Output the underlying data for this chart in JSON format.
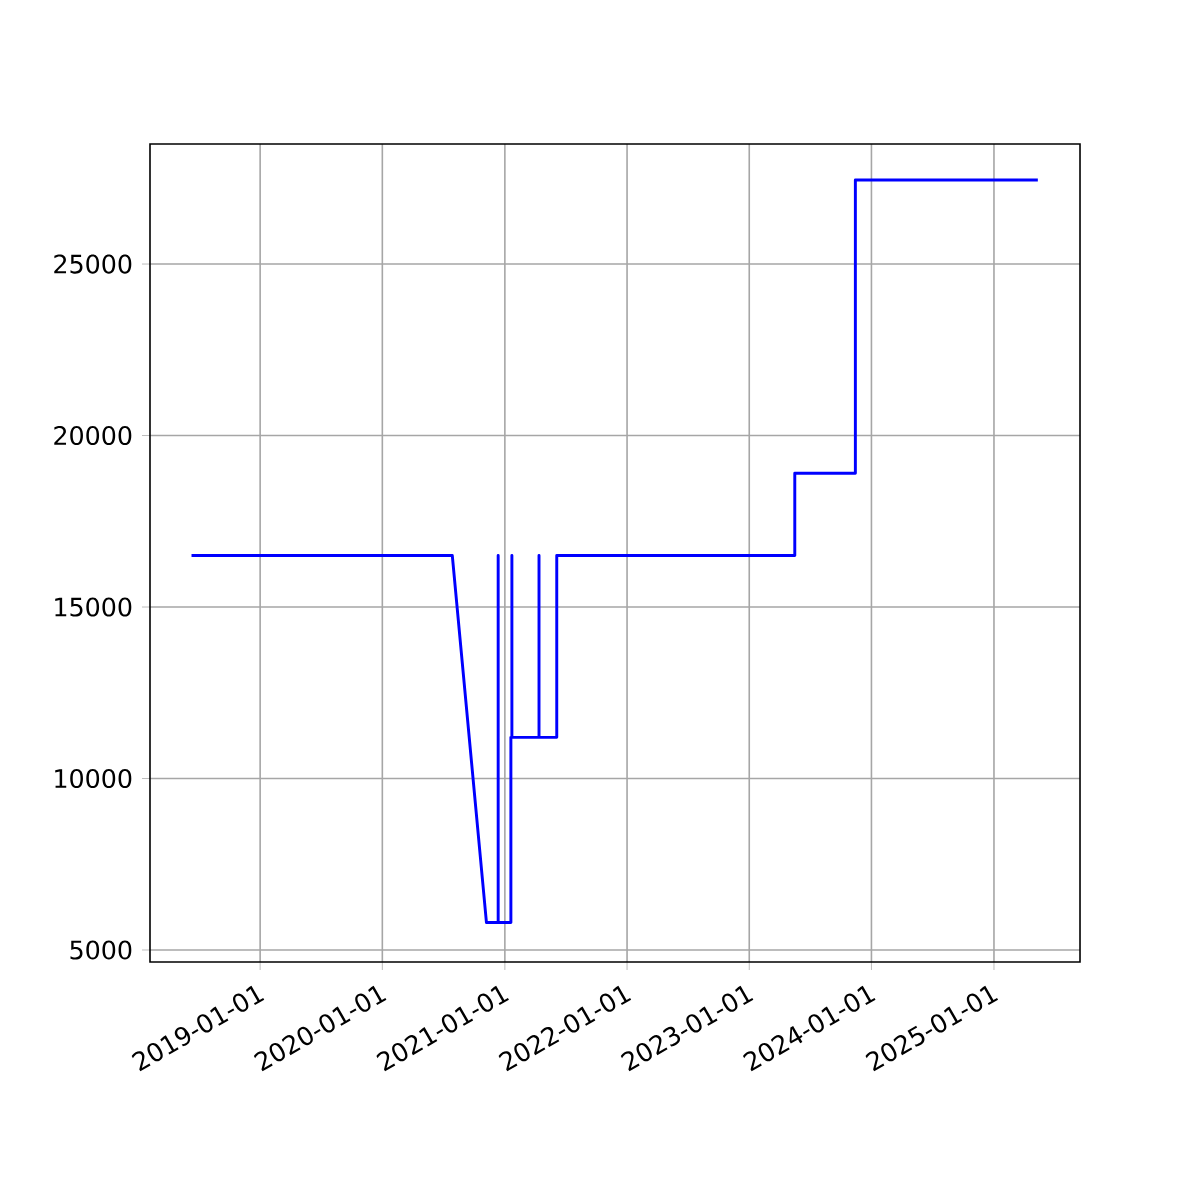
{
  "chart_data": {
    "type": "step",
    "color": "#0000ff",
    "x": [
      "2018-06-10",
      "2020-07-28",
      "2020-11-07",
      "2020-12-12",
      "2020-12-12",
      "2020-12-12",
      "2021-01-19",
      "2021-01-19",
      "2021-01-22",
      "2021-01-22",
      "2021-01-22",
      "2021-04-13",
      "2021-04-13",
      "2021-04-13",
      "2021-06-05",
      "2021-06-05",
      "2023-05-17",
      "2023-05-17",
      "2023-11-14",
      "2023-11-14",
      "2025-05-12"
    ],
    "values": [
      16500,
      16500,
      5800,
      5800,
      16500,
      5800,
      5800,
      11200,
      11200,
      16500,
      11200,
      11200,
      16500,
      11200,
      11200,
      16500,
      16500,
      18900,
      18900,
      27450,
      27450
    ],
    "xlim": [
      "2018-02-06",
      "2025-09-15"
    ],
    "ylim": [
      4650,
      28500
    ],
    "xticks": [
      "2019-01-01",
      "2020-01-01",
      "2021-01-01",
      "2022-01-01",
      "2023-01-01",
      "2024-01-01",
      "2025-01-01"
    ],
    "yticks": [
      5000,
      10000,
      15000,
      20000,
      25000
    ],
    "grid": true,
    "marker": "none",
    "line_style": "solid"
  }
}
